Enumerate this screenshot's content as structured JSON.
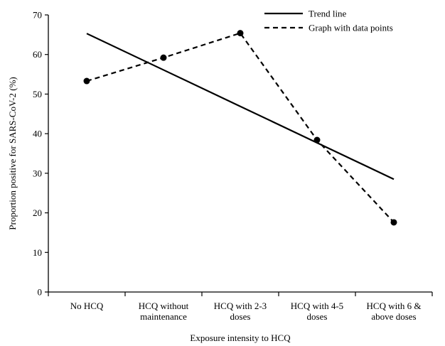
{
  "chart_data": {
    "type": "line",
    "title": "",
    "xlabel": "Exposure intensity to HCQ",
    "ylabel": "Proportion positive for SARS-CoV-2 (%)",
    "ylim": [
      0,
      70
    ],
    "yticks": [
      0,
      10,
      20,
      30,
      40,
      50,
      60,
      70
    ],
    "categories": [
      [
        "No HCQ"
      ],
      [
        "HCQ without",
        "maintenance"
      ],
      [
        "HCQ with 2-3",
        "doses"
      ],
      [
        "HCQ with 4-5",
        "doses"
      ],
      [
        "HCQ with 6 &",
        "above doses"
      ]
    ],
    "grid": false,
    "legend_position": "top-right",
    "series": [
      {
        "name": "Trend line",
        "style": "solid",
        "markers": false,
        "values": [
          65.3,
          56.1,
          46.9,
          37.7,
          28.5
        ]
      },
      {
        "name": "Graph with data points",
        "style": "dashed",
        "markers": true,
        "values": [
          53.3,
          59.2,
          65.4,
          38.4,
          17.6
        ]
      }
    ]
  }
}
